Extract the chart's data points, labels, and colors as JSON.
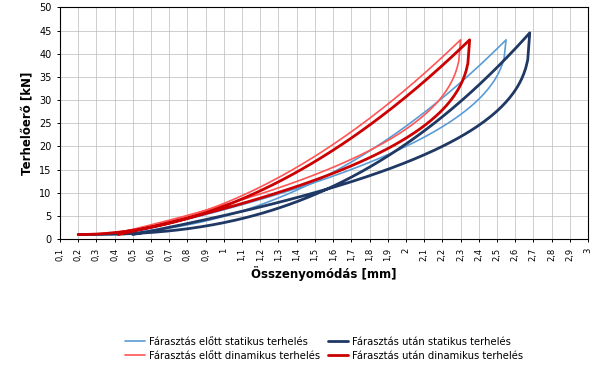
{
  "xlabel": "Összenyomódás [mm]",
  "ylabel": "Terhelőerő [kN]",
  "xlim": [
    0.1,
    3.0
  ],
  "ylim": [
    0,
    50
  ],
  "xticks": [
    0.1,
    0.2,
    0.3,
    0.4,
    0.5,
    0.6,
    0.7,
    0.8,
    0.9,
    1.0,
    1.1,
    1.2,
    1.3,
    1.4,
    1.5,
    1.6,
    1.7,
    1.8,
    1.9,
    2.0,
    2.1,
    2.2,
    2.3,
    2.4,
    2.5,
    2.6,
    2.7,
    2.8,
    2.9,
    3.0
  ],
  "xtick_labels": [
    "0,1",
    "0,2",
    "0,3",
    "0,4",
    "0,5",
    "0,6",
    "0,7",
    "0,8",
    "0,9",
    "1",
    "1,1",
    "1,2",
    "1,3",
    "1,4",
    "1,5",
    "1,6",
    "1,7",
    "1,8",
    "1,9",
    "2",
    "2,1",
    "2,2",
    "2,3",
    "2,4",
    "2,5",
    "2,6",
    "2,7",
    "2,8",
    "2,9",
    "3"
  ],
  "yticks": [
    0,
    5,
    10,
    15,
    20,
    25,
    30,
    35,
    40,
    45,
    50
  ],
  "curves": [
    {
      "label": "Fárasztás előtt statikus terhelés",
      "color": "#5B9BD5",
      "lw": 1.2,
      "x_start": 0.2,
      "x_max": 2.55,
      "y_start": 1.0,
      "y_max": 43.0,
      "x_ret": 0.45,
      "y_ret": 1.0,
      "power_load": 2.2,
      "power_unload": 0.45
    },
    {
      "label": "Fárasztás előtt dinamikus terhelés",
      "color": "#FF5555",
      "lw": 1.2,
      "x_start": 0.2,
      "x_max": 2.3,
      "y_start": 1.0,
      "y_max": 43.0,
      "x_ret": 0.38,
      "y_ret": 1.0,
      "power_load": 1.9,
      "power_unload": 0.42
    },
    {
      "label": "Fárasztás után statikus terhelés",
      "color": "#1F3864",
      "lw": 2.0,
      "x_start": 0.2,
      "x_max": 2.68,
      "y_start": 1.0,
      "y_max": 44.5,
      "x_ret": 0.5,
      "y_ret": 1.0,
      "power_load": 2.5,
      "power_unload": 0.38
    },
    {
      "label": "Fárasztás után dinamikus terhelés",
      "color": "#CC0000",
      "lw": 2.0,
      "x_start": 0.2,
      "x_max": 2.35,
      "y_start": 1.0,
      "y_max": 43.0,
      "x_ret": 0.42,
      "y_ret": 1.0,
      "power_load": 1.95,
      "power_unload": 0.4
    }
  ],
  "background_color": "#ffffff",
  "grid_color": "#bbbbbb"
}
